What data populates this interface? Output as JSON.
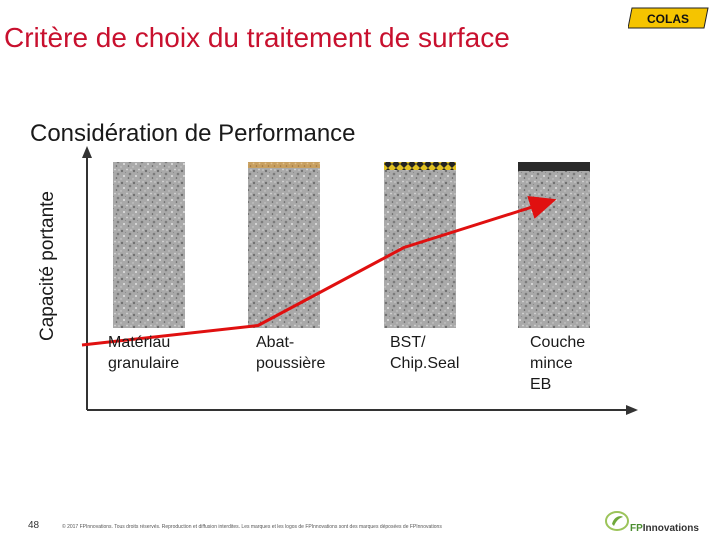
{
  "header": {
    "title": "Critère de choix du traitement de surface",
    "logo_text": "COLAS"
  },
  "slide": {
    "subtitle": "Considération de Performance",
    "page_number": "48"
  },
  "footer": {
    "copyright": "© 2017 FPInnovations. Tous droits réservés. Reproduction et diffusion interdites. Les marques et les logos de FPInnovations sont des marques déposées de FPInnovations",
    "logo_text": "FPInnovations"
  },
  "chart_data": {
    "type": "line",
    "ylabel": "Capacité portante",
    "xlabel": "",
    "categories": [
      "Matériau\ngranulaire",
      "Abat-\npoussière",
      "BST/\nChip.Seal",
      "Couche\nmince\nEB"
    ],
    "series": [
      {
        "name": "Capacité portante",
        "values": [
          1.0,
          1.3,
          2.5,
          3.2
        ]
      }
    ],
    "surface_layers": [
      "none",
      "dust-suppressant",
      "chip-seal",
      "thin-asphalt"
    ],
    "ylim": [
      0,
      4
    ],
    "grid": false,
    "colors": {
      "line": "#e01010",
      "bar": "#a8a8a8",
      "dust": "#c8a060",
      "chip_seal_yellow": "#e0c020",
      "thin_asphalt": "#2a2a2a",
      "title": "#c8102e"
    }
  }
}
